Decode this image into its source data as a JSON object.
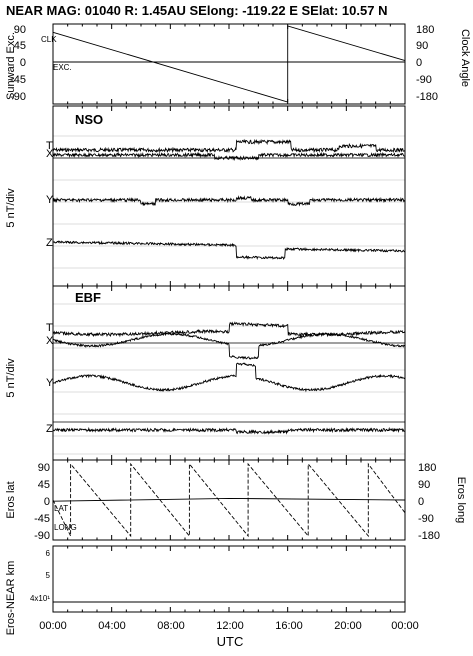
{
  "header": {
    "title": "NEAR MAG: 01040  R: 1.45AU  SElong: -119.22 E  SElat:  10.57 N"
  },
  "chart_data": [
    {
      "type": "line",
      "panel": "top",
      "ylabel_left": "Sunward Exc.",
      "ylabel_right": "Clock Angle",
      "yticks_left": [
        "90",
        "45",
        "0",
        "-45",
        "-90"
      ],
      "yticks_right": [
        "180",
        "90",
        "0",
        "-90",
        "-180"
      ],
      "series_labels": [
        "CLK",
        "EXC."
      ],
      "series": [
        {
          "name": "CLK",
          "x": [
            0,
            16.0,
            16.0,
            24.0
          ],
          "y": [
            75,
            -90,
            90,
            8
          ]
        },
        {
          "name": "EXC.",
          "x": [
            0,
            6,
            12,
            18,
            24
          ],
          "y": [
            0,
            0,
            0,
            0,
            0
          ]
        }
      ]
    },
    {
      "type": "line",
      "panel": "NSO",
      "title": "NSO",
      "ylabel": "5 nT/div",
      "components": [
        "T",
        "X",
        "Y",
        "Z"
      ]
    },
    {
      "type": "line",
      "panel": "EBF",
      "title": "EBF",
      "ylabel": "5 nT/div",
      "components": [
        "T",
        "X",
        "Y",
        "Z"
      ]
    },
    {
      "type": "line",
      "panel": "eros",
      "ylabel_left": "Eros lat",
      "ylabel_right": "Eros long",
      "yticks_left": [
        "90",
        "45",
        "0",
        "-45",
        "-90"
      ],
      "yticks_right": [
        "180",
        "90",
        "0",
        "-90",
        "-180"
      ],
      "series_labels": [
        "LAT",
        "LONG"
      ],
      "long_resets_utc": [
        1.2,
        5.3,
        9.3,
        13.3,
        17.4,
        21.5
      ]
    },
    {
      "type": "line",
      "panel": "range",
      "ylabel": "Eros-NEAR km",
      "yticks": [
        "6",
        "5",
        "4x10¹"
      ],
      "x": [
        0,
        6,
        12,
        18,
        24
      ],
      "y": [
        32,
        32,
        32,
        32,
        32
      ]
    }
  ],
  "xaxis": {
    "ticks": [
      "00:00",
      "04:00",
      "08:00",
      "12:00",
      "16:00",
      "20:00",
      "00:00"
    ],
    "label": "UTC"
  }
}
